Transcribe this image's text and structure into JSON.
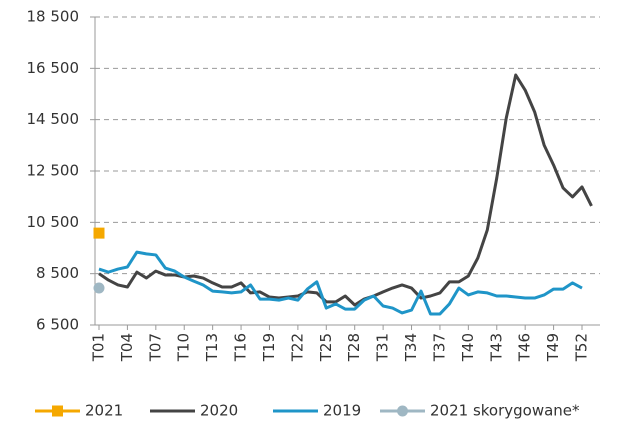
{
  "chart_data": {
    "type": "line",
    "categories": [
      "T01",
      null,
      null,
      "T04",
      null,
      null,
      "T07",
      null,
      null,
      "T10",
      null,
      null,
      "T13",
      null,
      null,
      "T16",
      null,
      null,
      "T19",
      null,
      null,
      "T22",
      null,
      null,
      "T25",
      null,
      null,
      "T28",
      null,
      null,
      "T31",
      null,
      null,
      "T34",
      null,
      null,
      "T37",
      null,
      null,
      "T40",
      null,
      null,
      "T43",
      null,
      null,
      "T46",
      null,
      null,
      "T49",
      null,
      null,
      "T52",
      null
    ],
    "series": [
      {
        "name": "2021",
        "color": "#f5a800",
        "marker": "square",
        "values": [
          10080,
          null,
          null,
          null,
          null,
          null,
          null,
          null,
          null,
          null,
          null,
          null,
          null,
          null,
          null,
          null,
          null,
          null,
          null,
          null,
          null,
          null,
          null,
          null,
          null,
          null,
          null,
          null,
          null,
          null,
          null,
          null,
          null,
          null,
          null,
          null,
          null,
          null,
          null,
          null,
          null,
          null,
          null,
          null,
          null,
          null,
          null,
          null,
          null,
          null,
          null,
          null,
          null
        ]
      },
      {
        "name": "2020",
        "color": "#444444",
        "marker": null,
        "values": [
          8500,
          8250,
          8060,
          7980,
          8560,
          8330,
          8600,
          8450,
          8450,
          8370,
          8410,
          8330,
          8140,
          7980,
          7980,
          8140,
          7750,
          7790,
          7590,
          7550,
          7590,
          7630,
          7790,
          7750,
          7400,
          7400,
          7630,
          7280,
          7510,
          7630,
          7790,
          7940,
          8060,
          7940,
          7550,
          7630,
          7750,
          8180,
          8180,
          8410,
          9110,
          10200,
          12230,
          14560,
          16240,
          15650,
          14800,
          13510,
          12730,
          11840,
          11490,
          11880,
          11140
        ]
      },
      {
        "name": "2019",
        "color": "#1f95c8",
        "marker": null,
        "values": [
          8680,
          8560,
          8680,
          8760,
          9340,
          9270,
          9230,
          8720,
          8600,
          8370,
          8210,
          8060,
          7820,
          7790,
          7750,
          7790,
          8060,
          7510,
          7510,
          7470,
          7550,
          7470,
          7900,
          8180,
          7160,
          7320,
          7120,
          7120,
          7470,
          7630,
          7240,
          7160,
          6970,
          7080,
          7820,
          6930,
          6930,
          7320,
          7940,
          7670,
          7790,
          7750,
          7630,
          7630,
          7590,
          7550,
          7550,
          7670,
          7900,
          7900,
          8140,
          7940,
          null
        ]
      },
      {
        "name": "2021 skorygowane*",
        "color": "#9fb7c3",
        "marker": "circle",
        "values": [
          7940,
          null,
          null,
          null,
          null,
          null,
          null,
          null,
          null,
          null,
          null,
          null,
          null,
          null,
          null,
          null,
          null,
          null,
          null,
          null,
          null,
          null,
          null,
          null,
          null,
          null,
          null,
          null,
          null,
          null,
          null,
          null,
          null,
          null,
          null,
          null,
          null,
          null,
          null,
          null,
          null,
          null,
          null,
          null,
          null,
          null,
          null,
          null,
          null,
          null,
          null,
          null,
          null
        ]
      }
    ],
    "ylim": [
      6500,
      18500
    ],
    "yticks": [
      {
        "value": 6500,
        "label": "6 500"
      },
      {
        "value": 8500,
        "label": "8 500"
      },
      {
        "value": 10500,
        "label": "10 500"
      },
      {
        "value": 12500,
        "label": "12 500"
      },
      {
        "value": 14500,
        "label": "14 500"
      },
      {
        "value": 16500,
        "label": "16 500"
      },
      {
        "value": 18500,
        "label": "18 500"
      }
    ],
    "grid": true
  }
}
